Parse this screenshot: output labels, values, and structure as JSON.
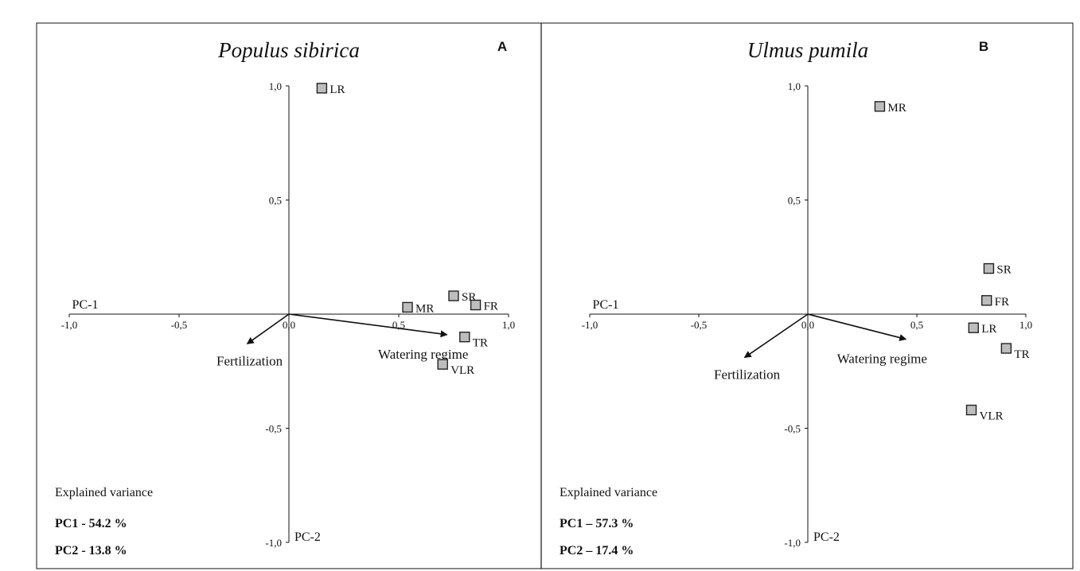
{
  "chart_data": [
    {
      "type": "scatter",
      "panel_letter": "A",
      "title": "Populus sibirica",
      "xlabel": "PC-1",
      "ylabel": "PC-2",
      "xlim": [
        -1.0,
        1.0
      ],
      "ylim": [
        -1.0,
        1.0
      ],
      "x_ticks": [
        "-1,0",
        "-0,5",
        "0,0",
        "0,5",
        "1,0"
      ],
      "y_ticks": [
        "1,0",
        "0,5",
        "-0,5",
        "-1,0"
      ],
      "grid": false,
      "points": [
        {
          "label": "LR",
          "x": 0.15,
          "y": 0.99
        },
        {
          "label": "SR",
          "x": 0.75,
          "y": 0.08
        },
        {
          "label": "MR",
          "x": 0.54,
          "y": 0.03
        },
        {
          "label": "FR",
          "x": 0.85,
          "y": 0.04
        },
        {
          "label": "TR",
          "x": 0.8,
          "y": -0.1
        },
        {
          "label": "VLR",
          "x": 0.7,
          "y": -0.22
        }
      ],
      "vectors": [
        {
          "label": "Fertilization",
          "x": -0.19,
          "y": -0.13
        },
        {
          "label": "Watering regime",
          "x": 0.72,
          "y": -0.09
        }
      ],
      "explained_variance": {
        "heading": "Explained variance",
        "pc1": "PC1 - 54.2 %",
        "pc2": "PC2 - 13.8 %"
      }
    },
    {
      "type": "scatter",
      "panel_letter": "B",
      "title": "Ulmus pumila",
      "xlabel": "PC-1",
      "ylabel": "PC-2",
      "xlim": [
        -1.0,
        1.0
      ],
      "ylim": [
        -1.0,
        1.0
      ],
      "x_ticks": [
        "-1,0",
        "-0,5",
        "0,0",
        "0,5",
        "1,0"
      ],
      "y_ticks": [
        "1,0",
        "0,5",
        "-0,5",
        "-1,0"
      ],
      "grid": false,
      "points": [
        {
          "label": "MR",
          "x": 0.33,
          "y": 0.91
        },
        {
          "label": "SR",
          "x": 0.83,
          "y": 0.2
        },
        {
          "label": "FR",
          "x": 0.82,
          "y": 0.06
        },
        {
          "label": "LR",
          "x": 0.76,
          "y": -0.06
        },
        {
          "label": "TR",
          "x": 0.91,
          "y": -0.15
        },
        {
          "label": "VLR",
          "x": 0.75,
          "y": -0.42
        }
      ],
      "vectors": [
        {
          "label": "Fertilization",
          "x": -0.29,
          "y": -0.19
        },
        {
          "label": "Watering regime",
          "x": 0.45,
          "y": -0.11
        }
      ],
      "explained_variance": {
        "heading": "Explained variance",
        "pc1": "PC1 – 57.3 %",
        "pc2": "PC2 – 17.4 %"
      }
    }
  ]
}
